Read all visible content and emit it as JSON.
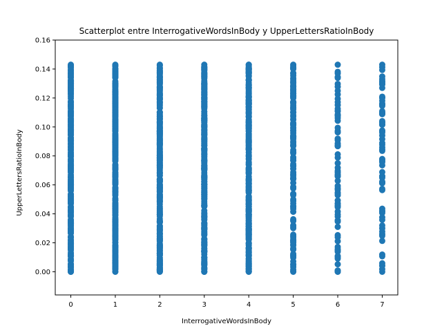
{
  "chart_data": {
    "type": "scatter",
    "title": "Scatterplot entre InterrogativeWordsInBody y UpperLettersRatioInBody",
    "xlabel": "InterrogativeWordsInBody",
    "ylabel": "UpperLettersRatioInBody",
    "xlim": [
      -0.35,
      7.35
    ],
    "ylim": [
      -0.016,
      0.16
    ],
    "xticks": [
      0,
      1,
      2,
      3,
      4,
      5,
      6,
      7
    ],
    "yticks": [
      0.0,
      0.02,
      0.04,
      0.06,
      0.08,
      0.1,
      0.12,
      0.14,
      0.16
    ],
    "ytick_labels": [
      "0.00",
      "0.02",
      "0.04",
      "0.06",
      "0.08",
      "0.10",
      "0.12",
      "0.14",
      "0.16"
    ],
    "grid": false,
    "legend": "none",
    "marker_color": "#1f77b4",
    "series": [
      {
        "points": [
          {
            "x": 0,
            "y_min": 0.0,
            "y_max": 0.143,
            "density": "dense"
          },
          {
            "x": 1,
            "y_min": 0.0,
            "y_max": 0.143,
            "density": "dense"
          },
          {
            "x": 2,
            "y_min": 0.0,
            "y_max": 0.143,
            "density": "dense"
          },
          {
            "x": 3,
            "y_min": 0.0,
            "y_max": 0.143,
            "density": "dense"
          },
          {
            "x": 4,
            "y_min": 0.0,
            "y_max": 0.143,
            "density": "dense"
          },
          {
            "x": 5,
            "y_min": 0.0,
            "y_max": 0.143,
            "density": "medium"
          },
          {
            "x": 6,
            "y_min": 0.0,
            "y_max": 0.143,
            "density": "sparse"
          },
          {
            "x": 7,
            "y_min": 0.0,
            "y_max": 0.143,
            "density": "sparse"
          }
        ]
      }
    ]
  }
}
